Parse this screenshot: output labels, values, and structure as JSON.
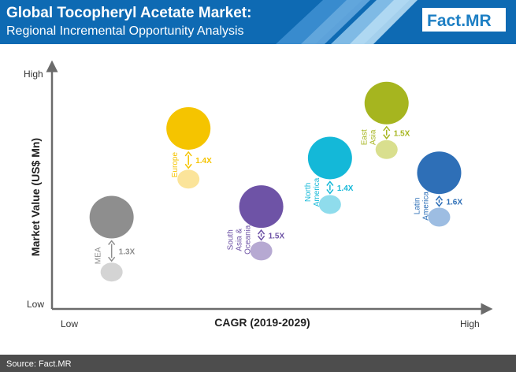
{
  "header": {
    "title": "Global Tocopheryl Acetate Market:",
    "subtitle": "Regional Incremental Opportunity Analysis",
    "logo_left": "Fact",
    "logo_right": ".MR"
  },
  "footer": {
    "source": "Source: Fact.MR"
  },
  "colors": {
    "header_bg": "#0e6ab3",
    "footer_bg": "#4d4d4d",
    "logo_accent": "#1d7fc4",
    "axis": "#6b6b6b"
  },
  "chart_data": {
    "type": "scatter",
    "title": "Global Tocopheryl Acetate Market:",
    "subtitle": "Regional Incremental Opportunity Analysis",
    "xlabel": "CAGR (2019-2029)",
    "ylabel": "Market Value (US$ Mn)",
    "x_low": "Low",
    "x_high": "High",
    "y_low": "Low",
    "y_high": "High",
    "xlim": [
      0,
      100
    ],
    "ylim": [
      0,
      100
    ],
    "grid": false,
    "series": [
      {
        "name": "MEA",
        "label_lines": [
          "MEA"
        ],
        "x": 15,
        "y_big": 36,
        "y_small": 10,
        "multiplier": "1.3X",
        "color": "#8e8e8e",
        "color_light": "#d4d4d4"
      },
      {
        "name": "Europe",
        "label_lines": [
          "Europe"
        ],
        "x": 34,
        "y_big": 78,
        "y_small": 54,
        "multiplier": "1.4X",
        "color": "#f5c400",
        "color_light": "#fbe49a"
      },
      {
        "name": "South Asia & Oceania",
        "label_lines": [
          "South",
          "Asia &",
          "Oceania"
        ],
        "x": 52,
        "y_big": 41,
        "y_small": 20,
        "multiplier": "1.5X",
        "color": "#6e53a6",
        "color_light": "#b6a9d2"
      },
      {
        "name": "North America",
        "label_lines": [
          "North",
          "America"
        ],
        "x": 69,
        "y_big": 64,
        "y_small": 42,
        "multiplier": "1.4X",
        "color": "#14b8d8",
        "color_light": "#8fdcec"
      },
      {
        "name": "East Asia",
        "label_lines": [
          "East",
          "Asia"
        ],
        "x": 83,
        "y_big": 90,
        "y_small": 68,
        "multiplier": "1.5X",
        "color": "#a6b51f",
        "color_light": "#d9df8e"
      },
      {
        "name": "Latin America",
        "label_lines": [
          "Latin",
          "America"
        ],
        "x": 96,
        "y_big": 57,
        "y_small": 36,
        "multiplier": "1.6X",
        "color": "#2e6fb7",
        "color_light": "#9dbde2"
      }
    ]
  }
}
